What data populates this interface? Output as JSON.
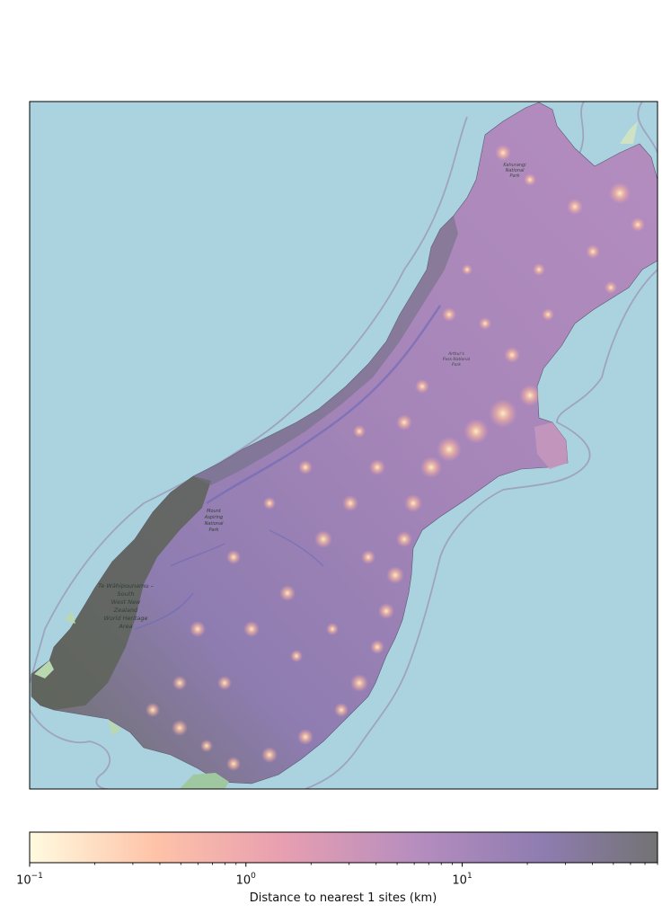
{
  "map": {
    "background_color": "#aad3df",
    "land_overlay_colormap": [
      "#fffbe0",
      "#fec3a8",
      "#e89fb0",
      "#b58dbf",
      "#8e7cb0",
      "#737373"
    ],
    "border_color": "#000000"
  },
  "colorbar": {
    "label": "Distance to nearest 1 sites (km)",
    "scale": "log",
    "range": [
      0.1,
      80
    ],
    "ticks": [
      {
        "value": 0.1,
        "base": "10",
        "exp": "−1"
      },
      {
        "value": 1,
        "base": "10",
        "exp": "0"
      },
      {
        "value": 10,
        "base": "10",
        "exp": "1"
      }
    ],
    "colors": [
      "#fffbe0",
      "#fec3a8",
      "#e89fb0",
      "#b58dbf",
      "#8e7cb0",
      "#737373"
    ]
  },
  "place_labels": [
    {
      "text": "Te Wāhipounamu – South West New Zealand World Heritage Area"
    },
    {
      "text": "Mount Aspiring National Park"
    },
    {
      "text": "Kahurangi National Park"
    },
    {
      "text": "Arthur's Pass National Park"
    }
  ]
}
